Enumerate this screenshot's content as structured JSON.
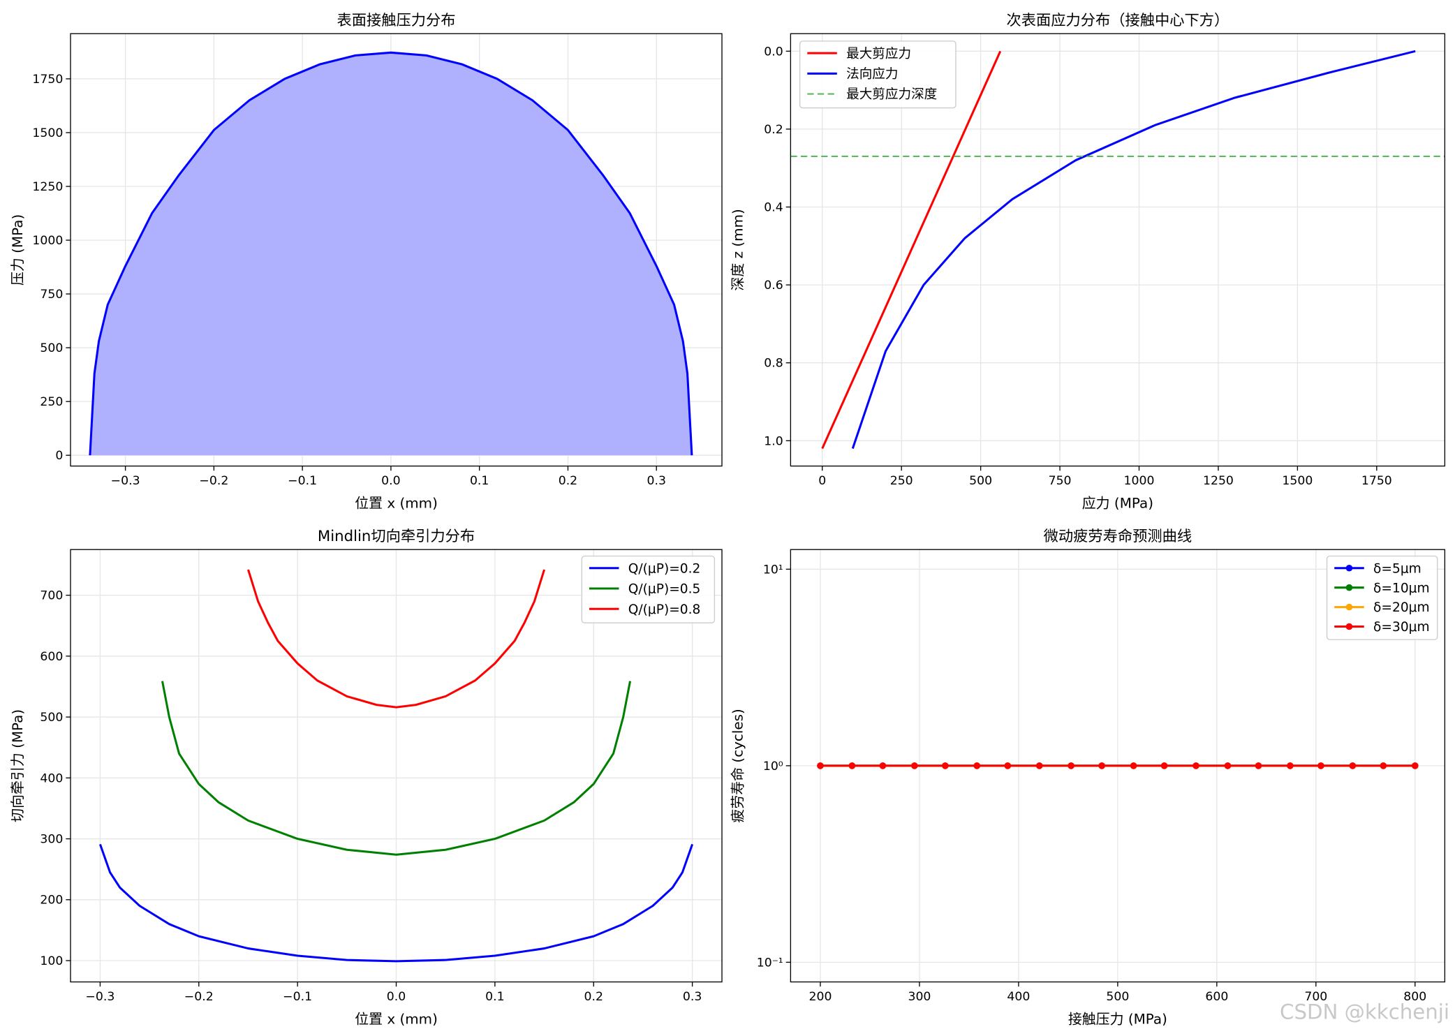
{
  "watermark": "CSDN @kkchenji",
  "colors": {
    "blue": "#0000ff",
    "green": "#008000",
    "red": "#ff0000",
    "orange": "#ffa500",
    "lightgreen": "#5cb85c",
    "fill": "#afb1ff",
    "grid": "#e6e6e6"
  },
  "chart_data": [
    {
      "type": "area",
      "title": "表面接触压力分布",
      "xlabel": "位置 x (mm)",
      "ylabel": "压力 (MPa)",
      "xlim": [
        -0.362,
        0.374
      ],
      "ylim": [
        -50,
        1960
      ],
      "xticks": [
        -0.3,
        -0.2,
        -0.1,
        0.0,
        0.1,
        0.2,
        0.3
      ],
      "xtick_labels": [
        "−0.3",
        "−0.2",
        "−0.1",
        "0.0",
        "0.1",
        "0.2",
        "0.3"
      ],
      "yticks": [
        0,
        250,
        500,
        750,
        1000,
        1250,
        1500,
        1750
      ],
      "ytick_labels": [
        "0",
        "250",
        "500",
        "750",
        "1000",
        "1250",
        "1500",
        "1750"
      ],
      "grid": true,
      "series": [
        {
          "color": "blue",
          "fill": "fill",
          "x": [
            -0.34,
            -0.335,
            -0.33,
            -0.32,
            -0.3,
            -0.27,
            -0.24,
            -0.2,
            -0.16,
            -0.12,
            -0.08,
            -0.04,
            0.0,
            0.04,
            0.08,
            0.12,
            0.16,
            0.2,
            0.24,
            0.27,
            0.3,
            0.32,
            0.33,
            0.335,
            0.34
          ],
          "y": [
            0,
            380,
            530,
            700,
            880,
            1125,
            1300,
            1512,
            1650,
            1750,
            1818,
            1859,
            1872,
            1859,
            1818,
            1750,
            1650,
            1512,
            1300,
            1125,
            880,
            700,
            530,
            380,
            0
          ]
        }
      ]
    },
    {
      "type": "line",
      "title": "次表面应力分布（接触中心下方）",
      "xlabel": "应力 (MPa)",
      "ylabel": "深度 z (mm)",
      "xlim": [
        -100,
        1965
      ],
      "ylim": [
        1.065,
        -0.045
      ],
      "y_inverted": true,
      "xticks": [
        0,
        250,
        500,
        750,
        1000,
        1250,
        1500,
        1750
      ],
      "xtick_labels": [
        "0",
        "250",
        "500",
        "750",
        "1000",
        "1250",
        "1500",
        "1750"
      ],
      "yticks": [
        0.0,
        0.2,
        0.4,
        0.6,
        0.8,
        1.0
      ],
      "ytick_labels": [
        "0.0",
        "0.2",
        "0.4",
        "0.6",
        "0.8",
        "1.0"
      ],
      "grid": true,
      "legend": "upper-left",
      "series": [
        {
          "name": "最大剪应力",
          "color": "red",
          "x": [
            0,
            562
          ],
          "y": [
            1.02,
            0.0
          ]
        },
        {
          "name": "法向应力",
          "color": "blue",
          "x": [
            96,
            200,
            320,
            450,
            600,
            800,
            1050,
            1300,
            1600,
            1872
          ],
          "y": [
            1.02,
            0.77,
            0.6,
            0.48,
            0.38,
            0.28,
            0.19,
            0.12,
            0.055,
            0.0
          ]
        },
        {
          "name": "最大剪应力深度",
          "color": "lightgreen",
          "dashed": true,
          "hline": 0.27
        }
      ]
    },
    {
      "type": "line",
      "title": "Mindlin切向牵引力分布",
      "xlabel": "位置 x (mm)",
      "ylabel": "切向牵引力 (MPa)",
      "xlim": [
        -0.33,
        0.33
      ],
      "ylim": [
        65,
        775
      ],
      "xticks": [
        -0.3,
        -0.2,
        -0.1,
        0.0,
        0.1,
        0.2,
        0.3
      ],
      "xtick_labels": [
        "−0.3",
        "−0.2",
        "−0.1",
        "0.0",
        "0.1",
        "0.2",
        "0.3"
      ],
      "yticks": [
        100,
        200,
        300,
        400,
        500,
        600,
        700
      ],
      "ytick_labels": [
        "100",
        "200",
        "300",
        "400",
        "500",
        "600",
        "700"
      ],
      "grid": true,
      "legend": "upper-right",
      "series": [
        {
          "name": "Q/(μP)=0.2",
          "color": "blue",
          "x": [
            -0.3,
            -0.29,
            -0.28,
            -0.26,
            -0.23,
            -0.2,
            -0.15,
            -0.1,
            -0.05,
            0.0,
            0.05,
            0.1,
            0.15,
            0.2,
            0.23,
            0.26,
            0.28,
            0.29,
            0.3
          ],
          "y": [
            291,
            245,
            220,
            190,
            160,
            140,
            120,
            108,
            101,
            99,
            101,
            108,
            120,
            140,
            160,
            190,
            220,
            245,
            291
          ]
        },
        {
          "name": "Q/(μP)=0.5",
          "color": "green",
          "x": [
            -0.237,
            -0.23,
            -0.22,
            -0.2,
            -0.18,
            -0.15,
            -0.1,
            -0.05,
            0.0,
            0.05,
            0.1,
            0.15,
            0.18,
            0.2,
            0.22,
            0.23,
            0.237
          ],
          "y": [
            559,
            500,
            440,
            390,
            360,
            330,
            300,
            282,
            274,
            282,
            300,
            330,
            360,
            390,
            440,
            500,
            559
          ]
        },
        {
          "name": "Q/(μP)=0.8",
          "color": "red",
          "x": [
            -0.15,
            -0.14,
            -0.13,
            -0.12,
            -0.1,
            -0.08,
            -0.05,
            -0.02,
            0.0,
            0.02,
            0.05,
            0.08,
            0.1,
            0.12,
            0.13,
            0.14,
            0.15
          ],
          "y": [
            742,
            690,
            655,
            625,
            588,
            560,
            534,
            520,
            516,
            520,
            534,
            560,
            588,
            625,
            655,
            690,
            742
          ]
        }
      ]
    },
    {
      "type": "line",
      "title": "微动疲劳寿命预测曲线",
      "xlabel": "接触压力 (MPa)",
      "ylabel": "疲劳寿命 (cycles)",
      "xlim": [
        170,
        830
      ],
      "ylim": [
        -1.1,
        1.1
      ],
      "yscale": "log",
      "xticks": [
        200,
        300,
        400,
        500,
        600,
        700,
        800
      ],
      "xtick_labels": [
        "200",
        "300",
        "400",
        "500",
        "600",
        "700",
        "800"
      ],
      "yticks": [
        -1,
        0,
        1
      ],
      "ytick_labels": [
        "10⁻¹",
        "10⁰",
        "10¹"
      ],
      "grid": true,
      "legend": "upper-right",
      "series": [
        {
          "name": "δ=5μm",
          "color": "blue",
          "marker": true,
          "x": [
            200,
            232,
            263,
            295,
            326,
            358,
            389,
            421,
            453,
            484,
            516,
            547,
            579,
            611,
            642,
            674,
            705,
            737,
            768,
            800
          ],
          "y": [
            1,
            1,
            1,
            1,
            1,
            1,
            1,
            1,
            1,
            1,
            1,
            1,
            1,
            1,
            1,
            1,
            1,
            1,
            1,
            1
          ]
        },
        {
          "name": "δ=10μm",
          "color": "green",
          "marker": true,
          "x": [
            200,
            232,
            263,
            295,
            326,
            358,
            389,
            421,
            453,
            484,
            516,
            547,
            579,
            611,
            642,
            674,
            705,
            737,
            768,
            800
          ],
          "y": [
            1,
            1,
            1,
            1,
            1,
            1,
            1,
            1,
            1,
            1,
            1,
            1,
            1,
            1,
            1,
            1,
            1,
            1,
            1,
            1
          ]
        },
        {
          "name": "δ=20μm",
          "color": "orange",
          "marker": true,
          "x": [
            200,
            232,
            263,
            295,
            326,
            358,
            389,
            421,
            453,
            484,
            516,
            547,
            579,
            611,
            642,
            674,
            705,
            737,
            768,
            800
          ],
          "y": [
            1,
            1,
            1,
            1,
            1,
            1,
            1,
            1,
            1,
            1,
            1,
            1,
            1,
            1,
            1,
            1,
            1,
            1,
            1,
            1
          ]
        },
        {
          "name": "δ=30μm",
          "color": "red",
          "marker": true,
          "x": [
            200,
            232,
            263,
            295,
            326,
            358,
            389,
            421,
            453,
            484,
            516,
            547,
            579,
            611,
            642,
            674,
            705,
            737,
            768,
            800
          ],
          "y": [
            1,
            1,
            1,
            1,
            1,
            1,
            1,
            1,
            1,
            1,
            1,
            1,
            1,
            1,
            1,
            1,
            1,
            1,
            1,
            1
          ]
        }
      ]
    }
  ]
}
